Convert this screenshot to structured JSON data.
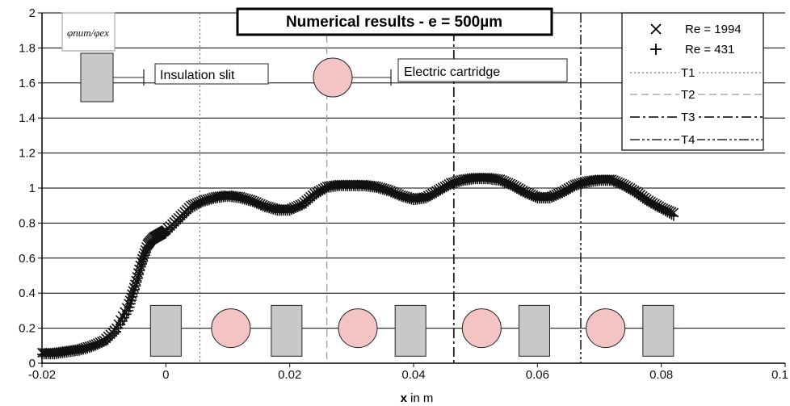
{
  "chart_data": {
    "type": "scatter",
    "title": "Numerical results - e = 500µm",
    "xlabel_bold": "x",
    "xlabel_rest": " in m",
    "ylabel": "φnum/φex",
    "xlim": [
      -0.02,
      0.1
    ],
    "ylim": [
      0,
      2
    ],
    "xticks": [
      -0.02,
      0,
      0.02,
      0.04,
      0.06,
      0.08,
      0.1
    ],
    "xtick_labels": [
      "-0.02",
      "0",
      "0.02",
      "0.04",
      "0.06",
      "0.08",
      "0.1"
    ],
    "yticks": [
      0,
      0.2,
      0.4,
      0.6,
      0.8,
      1,
      1.2,
      1.4,
      1.6,
      1.8,
      2
    ],
    "ytick_labels": [
      "0",
      "0.2",
      "0.4",
      "0.6",
      "0.8",
      "1",
      "1.2",
      "1.4",
      "1.6",
      "1.8",
      "2"
    ],
    "grid": "horizontal",
    "legend_position": "top-right",
    "series": [
      {
        "name": "Re = 1994",
        "marker": "x",
        "x": [
          -0.02,
          -0.018,
          -0.016,
          -0.014,
          -0.012,
          -0.01,
          -0.008,
          -0.006,
          -0.005,
          -0.004,
          -0.003,
          -0.002,
          -0.001,
          0.0,
          0.002,
          0.004,
          0.006,
          0.008,
          0.01,
          0.012,
          0.014,
          0.016,
          0.018,
          0.02,
          0.022,
          0.024,
          0.026,
          0.028,
          0.03,
          0.032,
          0.034,
          0.036,
          0.038,
          0.04,
          0.042,
          0.044,
          0.046,
          0.048,
          0.05,
          0.052,
          0.054,
          0.056,
          0.058,
          0.06,
          0.062,
          0.064,
          0.066,
          0.068,
          0.07,
          0.072,
          0.074,
          0.076,
          0.078,
          0.08,
          0.082
        ],
        "y": [
          0.06,
          0.06,
          0.07,
          0.08,
          0.1,
          0.13,
          0.2,
          0.34,
          0.45,
          0.58,
          0.68,
          0.72,
          0.74,
          0.76,
          0.83,
          0.9,
          0.93,
          0.95,
          0.96,
          0.95,
          0.93,
          0.9,
          0.88,
          0.88,
          0.91,
          0.97,
          1.01,
          1.02,
          1.02,
          1.02,
          1.01,
          0.99,
          0.96,
          0.94,
          0.95,
          0.99,
          1.03,
          1.05,
          1.06,
          1.06,
          1.05,
          1.02,
          0.98,
          0.95,
          0.95,
          0.98,
          1.02,
          1.04,
          1.05,
          1.05,
          1.02,
          0.98,
          0.93,
          0.89,
          0.86
        ]
      },
      {
        "name": "Re = 431",
        "marker": "+",
        "x": [
          -0.02,
          -0.018,
          -0.016,
          -0.014,
          -0.012,
          -0.01,
          -0.008,
          -0.006,
          -0.005,
          -0.004,
          -0.003,
          -0.002,
          -0.001,
          0.0,
          0.002,
          0.004,
          0.006,
          0.008,
          0.01,
          0.012,
          0.014,
          0.016,
          0.018,
          0.02,
          0.022,
          0.024,
          0.026,
          0.028,
          0.03,
          0.032,
          0.034,
          0.036,
          0.038,
          0.04,
          0.042,
          0.044,
          0.046,
          0.048,
          0.05,
          0.052,
          0.054,
          0.056,
          0.058,
          0.06,
          0.062,
          0.064,
          0.066,
          0.068,
          0.07,
          0.072,
          0.074,
          0.076,
          0.078,
          0.08,
          0.082
        ],
        "y": [
          0.05,
          0.05,
          0.06,
          0.07,
          0.09,
          0.12,
          0.18,
          0.3,
          0.42,
          0.55,
          0.65,
          0.7,
          0.72,
          0.74,
          0.81,
          0.88,
          0.92,
          0.94,
          0.95,
          0.94,
          0.92,
          0.89,
          0.87,
          0.87,
          0.9,
          0.96,
          1.0,
          1.01,
          1.01,
          1.01,
          1.0,
          0.98,
          0.95,
          0.93,
          0.94,
          0.98,
          1.02,
          1.04,
          1.05,
          1.05,
          1.04,
          1.01,
          0.97,
          0.94,
          0.94,
          0.97,
          1.01,
          1.03,
          1.04,
          1.04,
          1.01,
          0.97,
          0.92,
          0.88,
          0.84
        ]
      }
    ],
    "vlines": [
      {
        "name": "T1",
        "x": 0.0055,
        "style": "dotted"
      },
      {
        "name": "T2",
        "x": 0.026,
        "style": "dashed"
      },
      {
        "name": "T3",
        "x": 0.0465,
        "style": "dashdot"
      },
      {
        "name": "T4",
        "x": 0.067,
        "style": "dashdotdot"
      }
    ],
    "annotations": {
      "insulation_slit": "Insulation slit",
      "electric_cartridge": "Electric cartridge"
    },
    "bottom_elements": [
      {
        "kind": "slit",
        "x": 0.0
      },
      {
        "kind": "cartridge",
        "x": 0.0105
      },
      {
        "kind": "slit",
        "x": 0.0195
      },
      {
        "kind": "cartridge",
        "x": 0.031
      },
      {
        "kind": "slit",
        "x": 0.0395
      },
      {
        "kind": "cartridge",
        "x": 0.051
      },
      {
        "kind": "slit",
        "x": 0.0595
      },
      {
        "kind": "cartridge",
        "x": 0.071
      },
      {
        "kind": "slit",
        "x": 0.0795
      }
    ],
    "colors": {
      "slit": "#c8c8c8",
      "cartridge": "#f4c4c4",
      "axis": "#000000",
      "marker": "#111111"
    }
  }
}
